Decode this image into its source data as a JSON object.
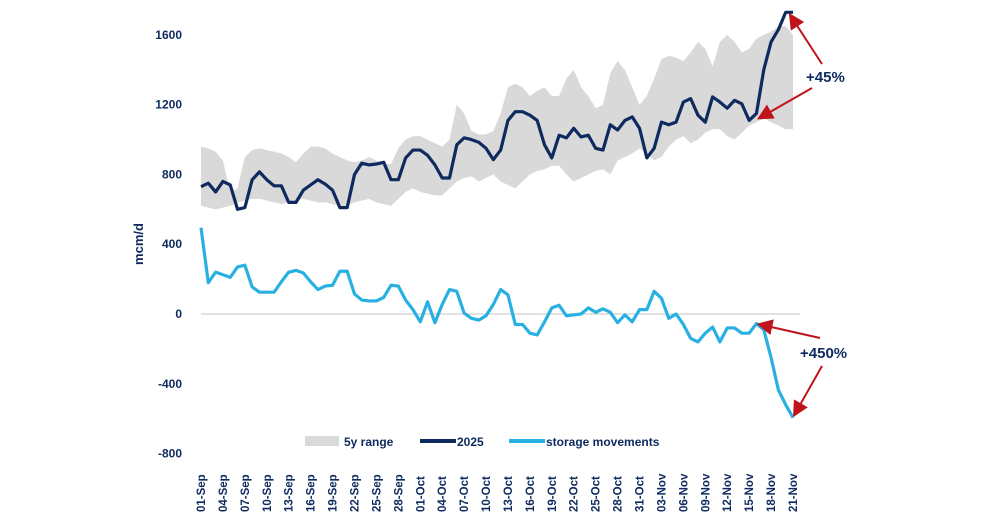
{
  "chart_data": {
    "type": "line",
    "title": "",
    "xlabel": "",
    "ylabel": "mcm/d",
    "ylim": [
      -800,
      1700
    ],
    "yticks": [
      1600,
      1200,
      800,
      400,
      0,
      -400,
      -800
    ],
    "start_date": "01-Sep",
    "end_date": "21-Nov",
    "xtick_labels": [
      "01-Sep",
      "04-Sep",
      "07-Sep",
      "10-Sep",
      "13-Sep",
      "16-Sep",
      "19-Sep",
      "22-Sep",
      "25-Sep",
      "28-Sep",
      "01-Oct",
      "04-Oct",
      "07-Oct",
      "10-Oct",
      "13-Oct",
      "16-Oct",
      "19-Oct",
      "22-Oct",
      "25-Oct",
      "28-Oct",
      "31-Oct",
      "03-Nov",
      "06-Nov",
      "09-Nov",
      "12-Nov",
      "15-Nov",
      "18-Nov",
      "21-Nov"
    ],
    "grid": false,
    "legend_position": "bottom",
    "colors": {
      "range": "#d9d9d9",
      "y2025": "#0e2a5e",
      "storage": "#29b0e3",
      "arrow": "#c0141c",
      "text": "#0e2a5e"
    },
    "range_series": {
      "name": "5y range",
      "upper": [
        960,
        950,
        930,
        880,
        700,
        720,
        900,
        940,
        950,
        940,
        930,
        920,
        900,
        870,
        920,
        960,
        960,
        950,
        920,
        900,
        880,
        870,
        880,
        900,
        880,
        860,
        860,
        950,
        1000,
        1020,
        1020,
        1000,
        980,
        960,
        1000,
        1200,
        1150,
        1050,
        1030,
        1030,
        1050,
        1150,
        1300,
        1320,
        1300,
        1250,
        1280,
        1300,
        1250,
        1250,
        1350,
        1400,
        1300,
        1250,
        1180,
        1200,
        1380,
        1450,
        1400,
        1300,
        1200,
        1250,
        1350,
        1460,
        1480,
        1470,
        1450,
        1500,
        1560,
        1520,
        1420,
        1560,
        1600,
        1560,
        1500,
        1520,
        1580,
        1600,
        1620,
        1650,
        1650,
        1600
      ],
      "lower": [
        620,
        610,
        600,
        610,
        620,
        640,
        650,
        660,
        660,
        650,
        640,
        630,
        640,
        650,
        660,
        650,
        640,
        640,
        630,
        620,
        620,
        640,
        650,
        660,
        640,
        630,
        620,
        660,
        700,
        720,
        700,
        690,
        680,
        680,
        720,
        760,
        780,
        790,
        760,
        780,
        800,
        760,
        740,
        720,
        760,
        800,
        820,
        830,
        850,
        850,
        800,
        760,
        780,
        800,
        820,
        830,
        800,
        880,
        900,
        920,
        950,
        920,
        880,
        900,
        960,
        1000,
        1020,
        980,
        1000,
        1040,
        1060,
        1060,
        1020,
        1000,
        1040,
        1080,
        1100,
        1120,
        1100,
        1080,
        1060,
        1060
      ]
    },
    "series": [
      {
        "name": "2025",
        "values": [
          730,
          750,
          700,
          760,
          740,
          600,
          610,
          770,
          815,
          770,
          735,
          735,
          640,
          640,
          710,
          740,
          770,
          745,
          710,
          610,
          610,
          800,
          865,
          855,
          860,
          870,
          770,
          770,
          895,
          940,
          940,
          910,
          855,
          780,
          780,
          970,
          1010,
          1000,
          985,
          950,
          885,
          940,
          1110,
          1160,
          1160,
          1140,
          1110,
          970,
          895,
          1025,
          1010,
          1065,
          1015,
          1025,
          950,
          940,
          1085,
          1055,
          1110,
          1130,
          1065,
          895,
          950,
          1100,
          1085,
          1100,
          1215,
          1235,
          1140,
          1100,
          1245,
          1215,
          1180,
          1225,
          1205,
          1110,
          1150,
          1400,
          1560,
          1630,
          1730,
          1730
        ]
      },
      {
        "name": "storage movements",
        "values": [
          495,
          180,
          240,
          225,
          210,
          270,
          280,
          155,
          125,
          125,
          125,
          185,
          240,
          250,
          235,
          185,
          140,
          160,
          165,
          245,
          245,
          115,
          80,
          75,
          75,
          95,
          165,
          160,
          80,
          25,
          -45,
          70,
          -50,
          55,
          140,
          130,
          5,
          -25,
          -35,
          -10,
          55,
          140,
          110,
          -60,
          -60,
          -110,
          -120,
          -45,
          35,
          50,
          -10,
          -5,
          0,
          35,
          10,
          30,
          10,
          -50,
          -5,
          -45,
          25,
          25,
          130,
          90,
          -25,
          0,
          -60,
          -140,
          -160,
          -110,
          -75,
          -160,
          -80,
          -80,
          -110,
          -110,
          -55,
          -90,
          -250,
          -435,
          -520,
          -595
        ]
      }
    ],
    "annotations": [
      {
        "text": "+45%",
        "from_date": "16-Nov",
        "to_date": "21-Nov",
        "series": "2025"
      },
      {
        "text": "+450%",
        "from_date": "16-Nov",
        "to_date": "21-Nov",
        "series": "storage movements"
      }
    ]
  }
}
